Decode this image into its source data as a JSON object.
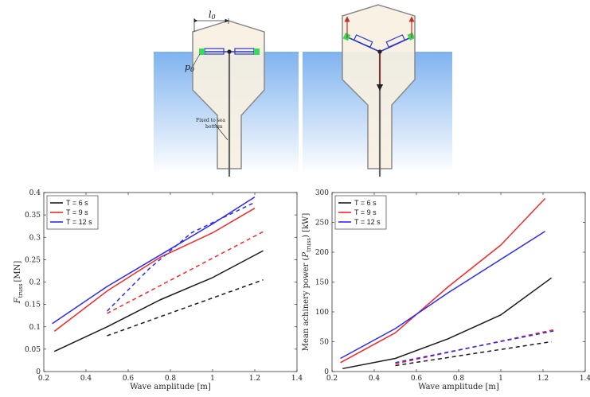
{
  "schematic": {
    "label_l0": "l",
    "label_l0_sub": "0",
    "label_p0": "p",
    "label_p0_sub": "0",
    "fixed_note_line1": "Fixed to sea",
    "fixed_note_line2": "bottom",
    "colors": {
      "water": "#7fb3ef",
      "hull": "#f8f1e2",
      "hull_edge": "#8a8a8a",
      "piston": "#2b38c8",
      "pad": "#33dd55",
      "arrow": "#c0302a"
    }
  },
  "chart_data": [
    {
      "type": "line",
      "title": "",
      "xlabel": "Wave amplitude [m]",
      "ylabel": "F",
      "ylabel_sub": "truss",
      "ylabel_unit": "[MN]",
      "xlim": [
        0.2,
        1.4
      ],
      "ylim": [
        0,
        0.4
      ],
      "xticks": [
        "0.2",
        "0.4",
        "0.6",
        "0.8",
        "1",
        "1.2",
        "1.4"
      ],
      "yticks": [
        "0",
        "0.05",
        "0.1",
        "0.15",
        "0.2",
        "0.25",
        "0.3",
        "0.35",
        "0.4"
      ],
      "legend_position": "top-left",
      "series": [
        {
          "name": "T = 6 s",
          "color": "#1a1a1a",
          "style": "solid",
          "x": [
            0.25,
            0.5,
            0.75,
            1.0,
            1.24
          ],
          "y": [
            0.045,
            0.1,
            0.16,
            0.21,
            0.27
          ]
        },
        {
          "name": "T = 9 s",
          "color": "#ee2a2a",
          "style": "solid",
          "x": [
            0.25,
            0.5,
            0.75,
            1.0,
            1.2
          ],
          "y": [
            0.09,
            0.18,
            0.255,
            0.31,
            0.365
          ]
        },
        {
          "name": "T = 12 s",
          "color": "#2b2bee",
          "style": "solid",
          "x": [
            0.24,
            0.5,
            0.75,
            1.0,
            1.2
          ],
          "y": [
            0.107,
            0.19,
            0.26,
            0.33,
            0.39
          ]
        },
        {
          "color": "#1a1a1a",
          "style": "dashed",
          "x": [
            0.5,
            1.24
          ],
          "y": [
            0.08,
            0.205
          ]
        },
        {
          "color": "#ee2a2a",
          "style": "dashed",
          "x": [
            0.5,
            1.25
          ],
          "y": [
            0.13,
            0.315
          ]
        },
        {
          "color": "#2b2bee",
          "style": "dashed",
          "x": [
            0.5,
            0.7,
            0.9,
            1.2
          ],
          "y": [
            0.135,
            0.23,
            0.31,
            0.378
          ]
        }
      ]
    },
    {
      "type": "line",
      "title": "",
      "xlabel": "Wave amplitude [m]",
      "ylabel": "Mean achinery power (",
      "ylabel_sym": "P",
      "ylabel_sub": "truss",
      "ylabel_unit": ") [kW]",
      "xlim": [
        0.2,
        1.4
      ],
      "ylim": [
        0,
        300
      ],
      "xticks": [
        "0.2",
        "0.4",
        "0.6",
        "0.8",
        "1",
        "1.2",
        "1.4"
      ],
      "yticks": [
        "0",
        "50",
        "100",
        "150",
        "200",
        "250",
        "300"
      ],
      "legend_position": "top-left",
      "series": [
        {
          "name": "T = 6 s",
          "color": "#1a1a1a",
          "style": "solid",
          "x": [
            0.25,
            0.5,
            0.75,
            1.0,
            1.24
          ],
          "y": [
            5,
            22,
            55,
            95,
            157
          ]
        },
        {
          "name": "T = 9 s",
          "color": "#ee2a2a",
          "style": "solid",
          "x": [
            0.24,
            0.5,
            0.75,
            1.0,
            1.21
          ],
          "y": [
            15,
            65,
            142,
            212,
            290
          ]
        },
        {
          "name": "T = 12 s",
          "color": "#2b2bee",
          "style": "solid",
          "x": [
            0.24,
            0.5,
            0.75,
            1.0,
            1.21
          ],
          "y": [
            22,
            72,
            132,
            188,
            235
          ]
        },
        {
          "color": "#1a1a1a",
          "style": "dashed",
          "x": [
            0.5,
            1.24
          ],
          "y": [
            10,
            50
          ]
        },
        {
          "color": "#ee2a2a",
          "style": "dashed",
          "x": [
            0.5,
            1.25
          ],
          "y": [
            13,
            70
          ]
        },
        {
          "color": "#2b2bee",
          "style": "dashed",
          "x": [
            0.5,
            1.25
          ],
          "y": [
            15,
            68
          ]
        }
      ]
    }
  ]
}
